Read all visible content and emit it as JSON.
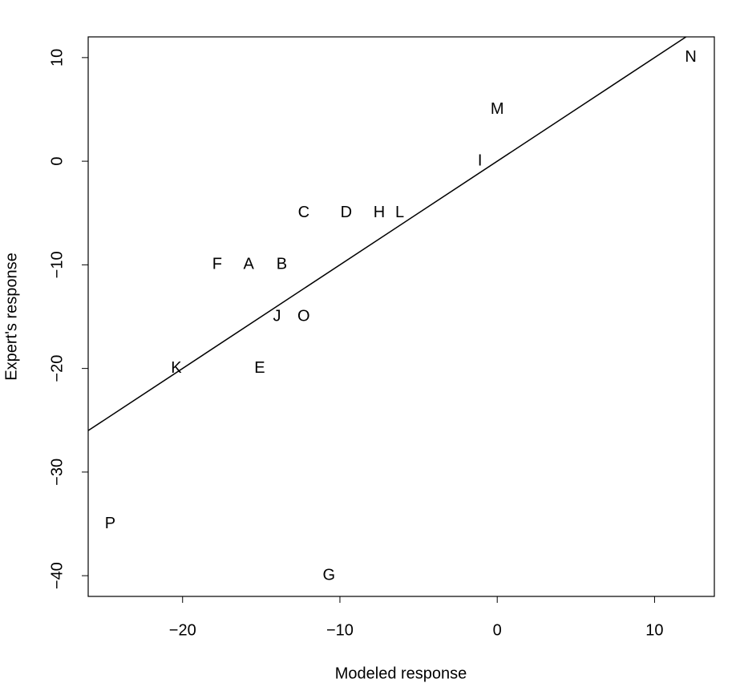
{
  "chart_data": {
    "type": "scatter",
    "x_label": "Modeled response",
    "y_label": "Expert's response",
    "labels": [
      "A",
      "B",
      "C",
      "D",
      "E",
      "F",
      "G",
      "H",
      "I",
      "J",
      "K",
      "L",
      "M",
      "N",
      "O",
      "P"
    ],
    "x": [
      -15.8,
      -13.7,
      -12.3,
      -9.6,
      -15.1,
      -17.8,
      -10.7,
      -7.5,
      -1.1,
      -14.0,
      -20.4,
      -6.2,
      0,
      12.3,
      -12.3,
      -24.6
    ],
    "y": [
      -10,
      -10,
      -5,
      -5,
      -20,
      -10,
      -40,
      -5,
      0,
      -15,
      -20,
      -5,
      5,
      10,
      -15,
      -35
    ],
    "line": {
      "x": [
        -26,
        12
      ],
      "y": [
        -26,
        12
      ]
    },
    "xlim": [
      -26,
      13.8
    ],
    "ylim": [
      -42,
      12
    ],
    "xticks": [
      {
        "value": -20,
        "label": "−20"
      },
      {
        "value": -10,
        "label": "−10"
      },
      0,
      10
    ],
    "yticks": [
      {
        "value": -40,
        "label": "−40"
      },
      {
        "value": -30,
        "label": "−30"
      },
      {
        "value": -20,
        "label": "−20"
      },
      {
        "value": -10,
        "label": "−10"
      },
      0,
      10
    ],
    "color": "#000000"
  }
}
